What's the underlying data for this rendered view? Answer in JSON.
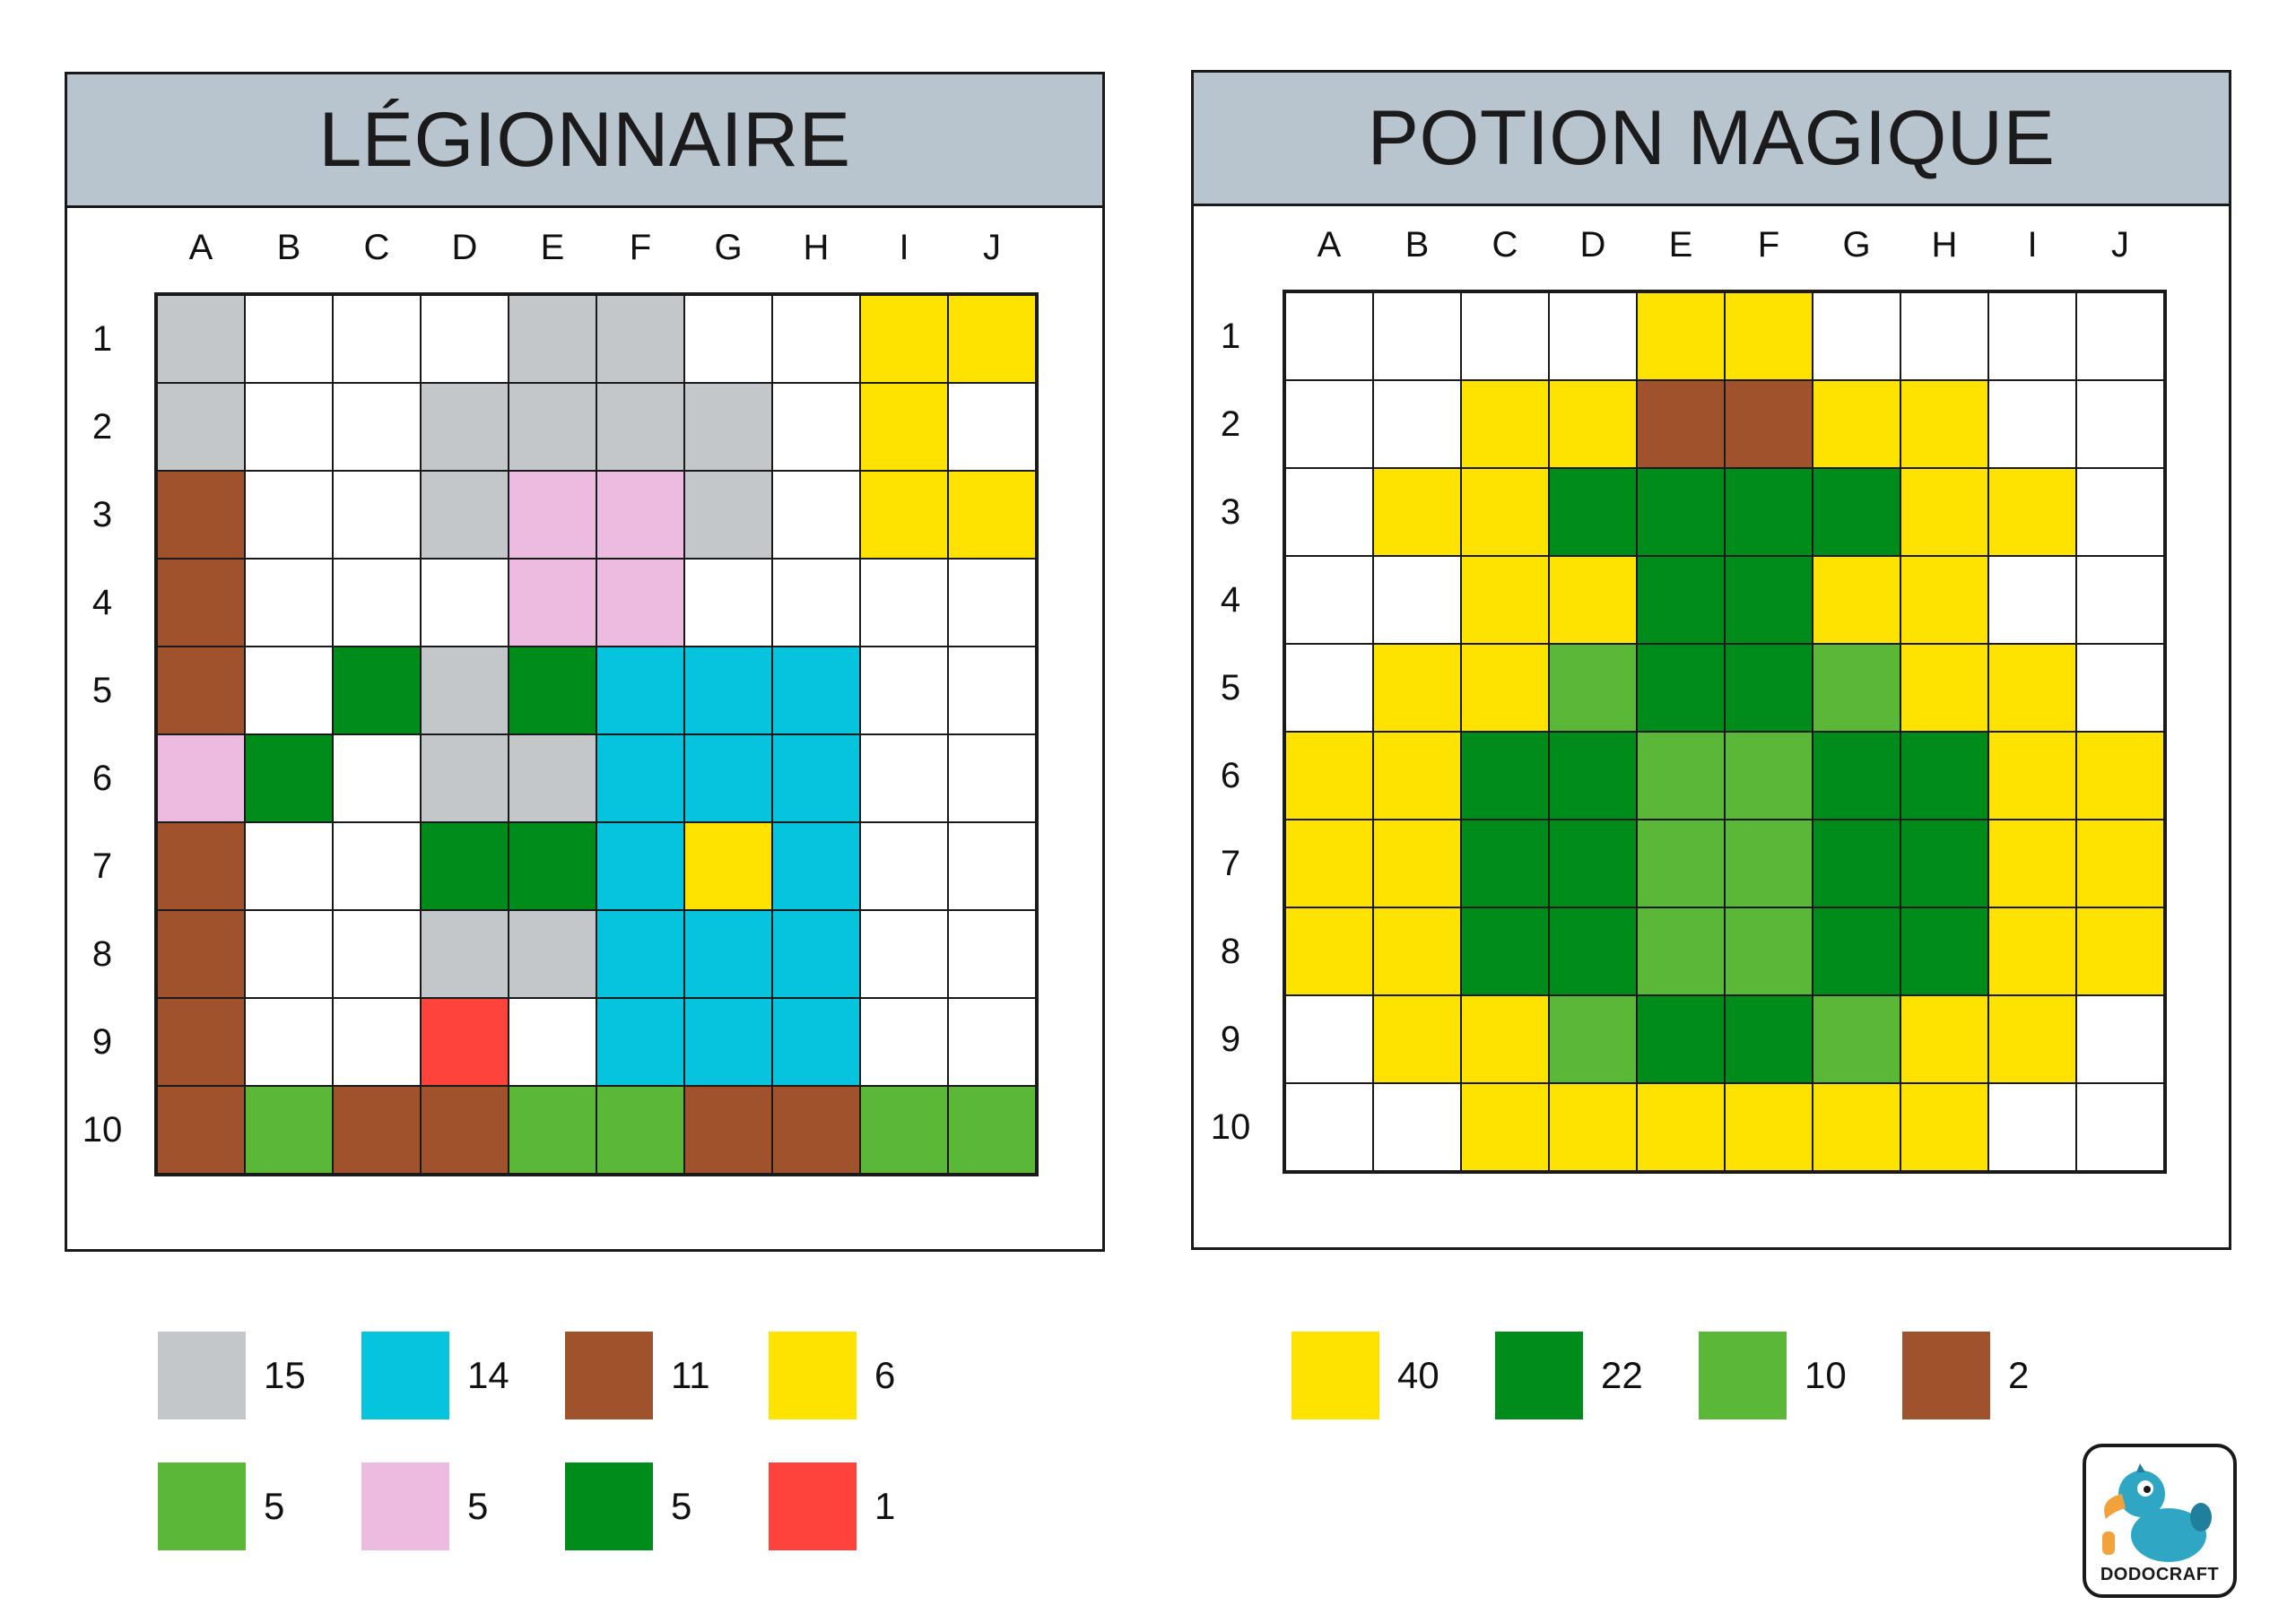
{
  "palette": {
    "W": "#ffffff",
    "S": "#c3c7c9",
    "B": "#a0522d",
    "Y": "#ffe300",
    "P": "#eebbe0",
    "D": "#008c1a",
    "C": "#06c3de",
    "L": "#5ab738",
    "R": "#fd433b"
  },
  "columns": [
    "A",
    "B",
    "C",
    "D",
    "E",
    "F",
    "G",
    "H",
    "I",
    "J"
  ],
  "rows": [
    "1",
    "2",
    "3",
    "4",
    "5",
    "6",
    "7",
    "8",
    "9",
    "10"
  ],
  "puzzles": [
    {
      "title": "LÉGIONNAIRE",
      "grid": [
        [
          "S",
          "W",
          "W",
          "W",
          "S",
          "S",
          "W",
          "W",
          "Y",
          "Y"
        ],
        [
          "S",
          "W",
          "W",
          "S",
          "S",
          "S",
          "S",
          "W",
          "Y",
          "W"
        ],
        [
          "B",
          "W",
          "W",
          "S",
          "P",
          "P",
          "S",
          "W",
          "Y",
          "Y"
        ],
        [
          "B",
          "W",
          "W",
          "W",
          "P",
          "P",
          "W",
          "W",
          "W",
          "W"
        ],
        [
          "B",
          "W",
          "D",
          "S",
          "D",
          "C",
          "C",
          "C",
          "W",
          "W"
        ],
        [
          "P",
          "D",
          "W",
          "S",
          "S",
          "C",
          "C",
          "C",
          "W",
          "W"
        ],
        [
          "B",
          "W",
          "W",
          "D",
          "D",
          "C",
          "Y",
          "C",
          "W",
          "W"
        ],
        [
          "B",
          "W",
          "W",
          "S",
          "S",
          "C",
          "C",
          "C",
          "W",
          "W"
        ],
        [
          "B",
          "W",
          "W",
          "R",
          "W",
          "C",
          "C",
          "C",
          "W",
          "W"
        ],
        [
          "B",
          "L",
          "B",
          "B",
          "L",
          "L",
          "B",
          "B",
          "L",
          "L"
        ]
      ],
      "legend": [
        {
          "color": "S",
          "count": "15"
        },
        {
          "color": "C",
          "count": "14"
        },
        {
          "color": "B",
          "count": "11"
        },
        {
          "color": "Y",
          "count": "6"
        },
        {
          "color": "L",
          "count": "5"
        },
        {
          "color": "P",
          "count": "5"
        },
        {
          "color": "D",
          "count": "5"
        },
        {
          "color": "R",
          "count": "1"
        }
      ]
    },
    {
      "title": "POTION MAGIQUE",
      "grid": [
        [
          "W",
          "W",
          "W",
          "W",
          "Y",
          "Y",
          "W",
          "W",
          "W",
          "W"
        ],
        [
          "W",
          "W",
          "Y",
          "Y",
          "B",
          "B",
          "Y",
          "Y",
          "W",
          "W"
        ],
        [
          "W",
          "Y",
          "Y",
          "D",
          "D",
          "D",
          "D",
          "Y",
          "Y",
          "W"
        ],
        [
          "W",
          "W",
          "Y",
          "Y",
          "D",
          "D",
          "Y",
          "Y",
          "W",
          "W"
        ],
        [
          "W",
          "Y",
          "Y",
          "L",
          "D",
          "D",
          "L",
          "Y",
          "Y",
          "W"
        ],
        [
          "Y",
          "Y",
          "D",
          "D",
          "L",
          "L",
          "D",
          "D",
          "Y",
          "Y"
        ],
        [
          "Y",
          "Y",
          "D",
          "D",
          "L",
          "L",
          "D",
          "D",
          "Y",
          "Y"
        ],
        [
          "Y",
          "Y",
          "D",
          "D",
          "L",
          "L",
          "D",
          "D",
          "Y",
          "Y"
        ],
        [
          "W",
          "Y",
          "Y",
          "L",
          "D",
          "D",
          "L",
          "Y",
          "Y",
          "W"
        ],
        [
          "W",
          "W",
          "Y",
          "Y",
          "Y",
          "Y",
          "Y",
          "Y",
          "W",
          "W"
        ]
      ],
      "legend": [
        {
          "color": "Y",
          "count": "40"
        },
        {
          "color": "D",
          "count": "22"
        },
        {
          "color": "L",
          "count": "10"
        },
        {
          "color": "B",
          "count": "2"
        }
      ]
    }
  ],
  "logo": {
    "text": "DODOCRAFT",
    "icon": "dodo-bird-mascot-icon",
    "colors": {
      "body": "#2fa7c4",
      "beak": "#f2a23a",
      "wing": "#1f7f9c"
    }
  }
}
